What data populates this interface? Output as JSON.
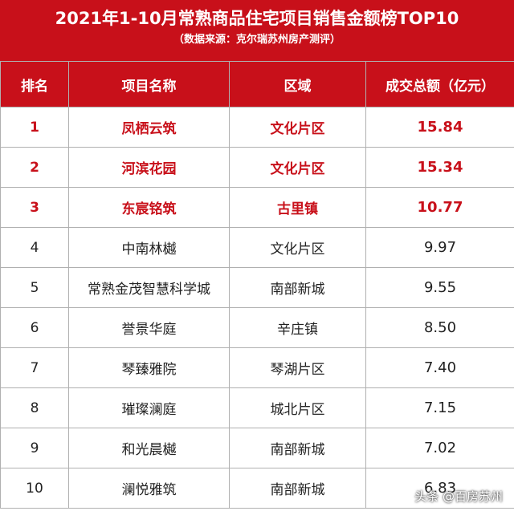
{
  "header": {
    "title": "2021年1-10月常熟商品住宅项目销售金额榜TOP10",
    "subtitle": "（数据来源：克尔瑞苏州房产测评）"
  },
  "table": {
    "columns": [
      "排名",
      "项目名称",
      "区域",
      "成交总额（亿元）"
    ],
    "rows": [
      {
        "rank": "1",
        "name": "凤栖云筑",
        "area": "文化片区",
        "amount": "15.84",
        "highlight": true
      },
      {
        "rank": "2",
        "name": "河滨花园",
        "area": "文化片区",
        "amount": "15.34",
        "highlight": true
      },
      {
        "rank": "3",
        "name": "东宸铭筑",
        "area": "古里镇",
        "amount": "10.77",
        "highlight": true
      },
      {
        "rank": "4",
        "name": "中南林樾",
        "area": "文化片区",
        "amount": "9.97",
        "highlight": false
      },
      {
        "rank": "5",
        "name": "常熟金茂智慧科学城",
        "area": "南部新城",
        "amount": "9.55",
        "highlight": false
      },
      {
        "rank": "6",
        "name": "誉景华庭",
        "area": "辛庄镇",
        "amount": "8.50",
        "highlight": false
      },
      {
        "rank": "7",
        "name": "琴臻雅院",
        "area": "琴湖片区",
        "amount": "7.40",
        "highlight": false
      },
      {
        "rank": "8",
        "name": "璀璨澜庭",
        "area": "城北片区",
        "amount": "7.15",
        "highlight": false
      },
      {
        "rank": "9",
        "name": "和光晨樾",
        "area": "南部新城",
        "amount": "7.02",
        "highlight": false
      },
      {
        "rank": "10",
        "name": "澜悦雅筑",
        "area": "南部新城",
        "amount": "6.83",
        "highlight": false
      }
    ]
  },
  "watermark": "头条 @百房苏州",
  "colors": {
    "accent": "#c8101a",
    "grid": "#b0b0b0"
  }
}
